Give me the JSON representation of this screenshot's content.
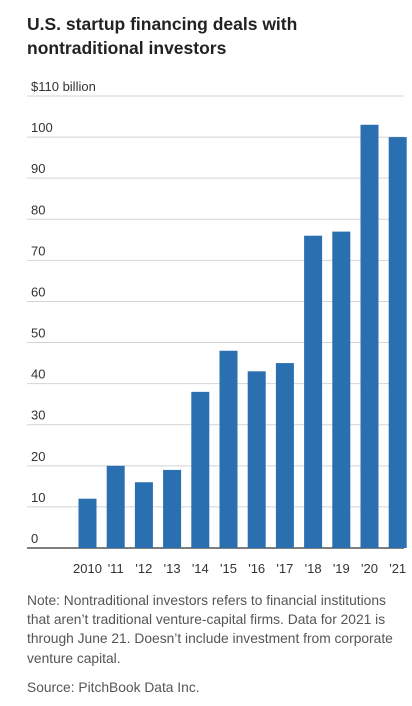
{
  "title": "U.S. startup financing deals with nontraditional investors",
  "note": "Note: Nontraditional investors refers to financial institutions that aren’t traditional venture-capital firms. Data for 2021 is through June 21. Doesn’t include investment from corporate venture capital.",
  "source": "Source: PitchBook Data Inc.",
  "chart_data": {
    "type": "bar",
    "categories": [
      "2010",
      "'11",
      "'12",
      "'13",
      "'14",
      "'15",
      "'16",
      "'17",
      "'18",
      "'19",
      "'20",
      "'21"
    ],
    "values": [
      12,
      20,
      16,
      19,
      38,
      48,
      43,
      45,
      76,
      77,
      103,
      100
    ],
    "ylim": [
      0,
      110
    ],
    "yticks": [
      0,
      10,
      20,
      30,
      40,
      50,
      60,
      70,
      80,
      90,
      100,
      110
    ],
    "ytick_labels": [
      "0",
      "10",
      "20",
      "30",
      "40",
      "50",
      "60",
      "70",
      "80",
      "90",
      "100",
      "$110 billion"
    ],
    "grid": true,
    "bar_color": "#2a6fb0"
  }
}
